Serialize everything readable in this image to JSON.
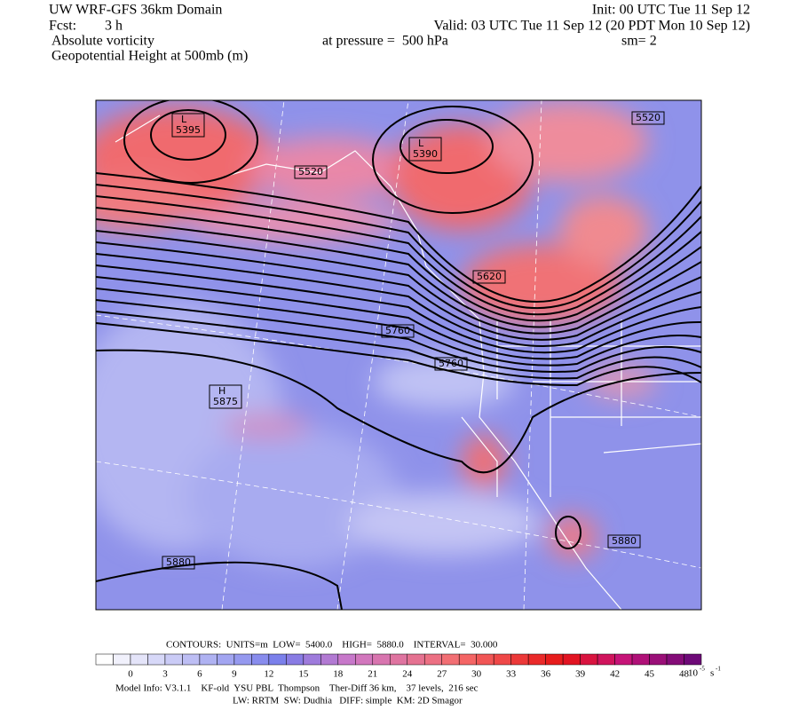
{
  "header": {
    "title": "UW WRF-GFS 36km Domain",
    "init": "Init: 00 UTC Tue 11 Sep 12",
    "fcst_label": "Fcst:",
    "fcst_value": "3 h",
    "valid": "Valid: 03 UTC Tue 11 Sep 12 (20 PDT Mon 10 Sep 12)",
    "field1": "Absolute vorticity",
    "pressure": "at pressure =  500 hPa",
    "smoothing": "sm= 2",
    "field2": "Geopotential Height at 500mb (m)"
  },
  "map": {
    "contour_labels": [
      {
        "letter": "L",
        "value": 5395
      },
      {
        "letter": "L",
        "value": 5390
      },
      {
        "value": 5520
      },
      {
        "value": 5520
      },
      {
        "value": 5620
      },
      {
        "value": 5760
      },
      {
        "value": 5760
      },
      {
        "letter": "H",
        "value": 5875
      },
      {
        "value": 5880
      },
      {
        "value": 5880
      }
    ]
  },
  "footer": {
    "contours": "CONTOURS:  UNITS=m  LOW=  5400.0    HIGH=  5880.0    INTERVAL=  30.000",
    "colorbar_labels": [
      0,
      3,
      6,
      9,
      12,
      15,
      18,
      21,
      24,
      27,
      30,
      33,
      36,
      39,
      42,
      45,
      48
    ],
    "unit_base": "10",
    "unit_exp": "-5",
    "unit_s": "s",
    "unit_s_exp": "-1",
    "model_info": "Model Info: V3.1.1    KF-old  YSU PBL  Thompson    Ther-Diff 36 km,    37 levels,  216 sec",
    "physics": "LW: RRTM  SW: Dudhia   DIFF: simple  KM: 2D Smagor"
  }
}
